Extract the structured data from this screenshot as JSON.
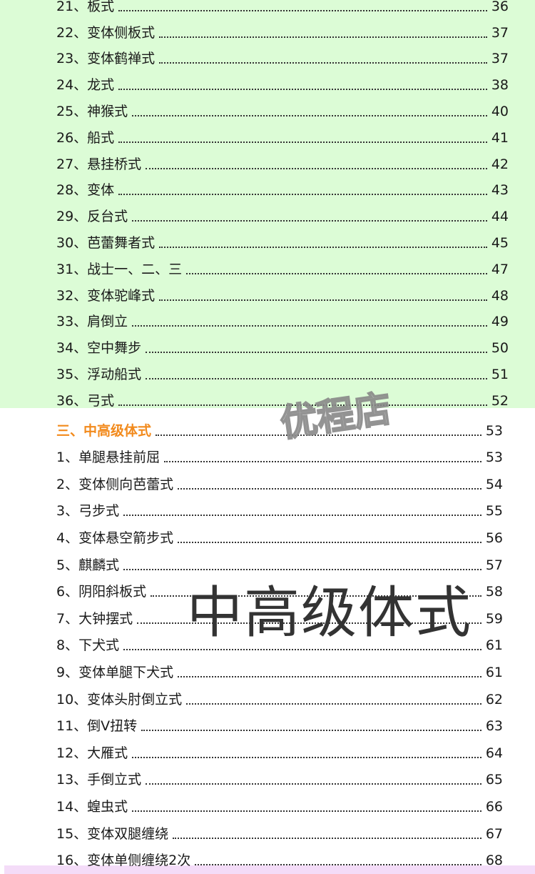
{
  "colors": {
    "top_bg": "#dcfcd6",
    "bottom_bg": "#ffffff",
    "section_heading": "#f28a1c",
    "footer_band": "#f4dcf8"
  },
  "top_items": [
    {
      "label": "21、板式",
      "page": "36"
    },
    {
      "label": "22、变体侧板式",
      "page": "37"
    },
    {
      "label": "23、变体鹤禅式",
      "page": "37"
    },
    {
      "label": "24、龙式",
      "page": "38"
    },
    {
      "label": "25、神猴式",
      "page": "40"
    },
    {
      "label": "26、船式",
      "page": "41"
    },
    {
      "label": "27、悬挂桥式",
      "page": "42"
    },
    {
      "label": "28、变体",
      "page": "43"
    },
    {
      "label": "29、反台式",
      "page": "44"
    },
    {
      "label": "30、芭蕾舞者式",
      "page": "45"
    },
    {
      "label": "31、战士一、二、三",
      "page": "47"
    },
    {
      "label": "32、变体驼峰式",
      "page": "48"
    },
    {
      "label": "33、肩倒立",
      "page": "49"
    },
    {
      "label": "34、空中舞步",
      "page": "50"
    },
    {
      "label": "35、浮动船式",
      "page": "51"
    },
    {
      "label": "36、弓式",
      "page": "52"
    }
  ],
  "section": {
    "label": "三、中高级体式",
    "page": "53"
  },
  "bottom_items": [
    {
      "label": "1、单腿悬挂前屈",
      "page": "53"
    },
    {
      "label": "2、变体侧向芭蕾式",
      "page": "54"
    },
    {
      "label": "3、弓步式",
      "page": "55"
    },
    {
      "label": "4、变体悬空箭步式",
      "page": "56"
    },
    {
      "label": "5、麒麟式",
      "page": "57"
    },
    {
      "label": "6、阴阳斜板式",
      "page": "58"
    },
    {
      "label": "7、大钟摆式",
      "page": "59"
    },
    {
      "label": "8、下犬式",
      "page": "61"
    },
    {
      "label": "9、变体单腿下犬式",
      "page": "61"
    },
    {
      "label": "10、变体头肘倒立式",
      "page": "62"
    },
    {
      "label": "11、倒V扭转",
      "page": "63"
    },
    {
      "label": "12、大雁式",
      "page": "64"
    },
    {
      "label": "13、手倒立式",
      "page": "65"
    },
    {
      "label": "14、蝗虫式",
      "page": "66"
    },
    {
      "label": "15、变体双腿缠绕",
      "page": "67"
    },
    {
      "label": "16、变体单侧缠绕2次",
      "page": "68"
    }
  ],
  "watermarks": {
    "overlay_title": "中高级体式",
    "shop_mark": "优程店"
  }
}
